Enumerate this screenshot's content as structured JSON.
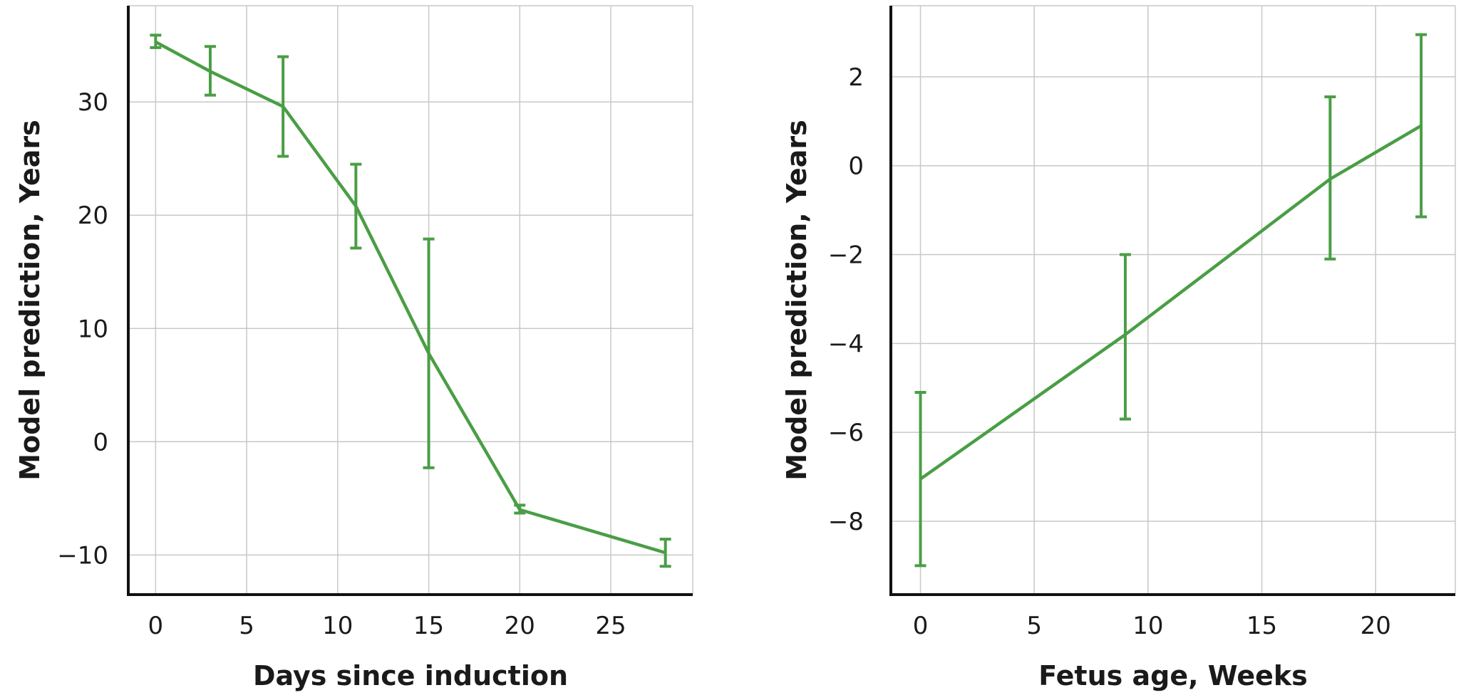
{
  "colors": {
    "series": "#4a9e45",
    "grid": "#c8c8c8",
    "axis": "#111111",
    "text": "#1a1a1a"
  },
  "chart_data": [
    {
      "type": "line",
      "title": "",
      "xlabel": "Days since induction",
      "ylabel": "Model prediction, Years",
      "xlim": [
        -1.5,
        29.5
      ],
      "ylim": [
        -13.5,
        38.5
      ],
      "xticks": [
        0,
        5,
        10,
        15,
        20,
        25
      ],
      "yticks": [
        -10,
        0,
        10,
        20,
        30
      ],
      "xtick_labels": [
        "0",
        "5",
        "10",
        "15",
        "20",
        "25"
      ],
      "ytick_labels": [
        "−10",
        "0",
        "10",
        "20",
        "30"
      ],
      "grid": true,
      "points": [
        {
          "x": 0,
          "y": 35.3,
          "err_low": 34.8,
          "err_high": 35.9
        },
        {
          "x": 3,
          "y": 32.7,
          "err_low": 30.6,
          "err_high": 34.9
        },
        {
          "x": 7,
          "y": 29.6,
          "err_low": 25.2,
          "err_high": 34.0
        },
        {
          "x": 11,
          "y": 20.8,
          "err_low": 17.1,
          "err_high": 24.5
        },
        {
          "x": 15,
          "y": 7.8,
          "err_low": -2.3,
          "err_high": 17.9
        },
        {
          "x": 20,
          "y": -6.0,
          "err_low": -6.3,
          "err_high": -5.6
        },
        {
          "x": 28,
          "y": -9.8,
          "err_low": -11.0,
          "err_high": -8.6
        }
      ]
    },
    {
      "type": "line",
      "title": "",
      "xlabel": "Fetus age, Weeks",
      "ylabel": "Model prediction, Years",
      "xlim": [
        -1.3,
        23.5
      ],
      "ylim": [
        -9.65,
        3.6
      ],
      "xticks": [
        0,
        5,
        10,
        15,
        20
      ],
      "yticks": [
        -8,
        -6,
        -4,
        -2,
        0,
        2
      ],
      "xtick_labels": [
        "0",
        "5",
        "10",
        "15",
        "20"
      ],
      "ytick_labels": [
        "−8",
        "−6",
        "−4",
        "−2",
        "0",
        "2"
      ],
      "grid": true,
      "points": [
        {
          "x": 0,
          "y": -7.05,
          "err_low": -9.0,
          "err_high": -5.1
        },
        {
          "x": 9,
          "y": -3.8,
          "err_low": -5.7,
          "err_high": -2.0
        },
        {
          "x": 18,
          "y": -0.3,
          "err_low": -2.1,
          "err_high": 1.55
        },
        {
          "x": 22,
          "y": 0.9,
          "err_low": -1.15,
          "err_high": 2.95
        }
      ]
    }
  ]
}
